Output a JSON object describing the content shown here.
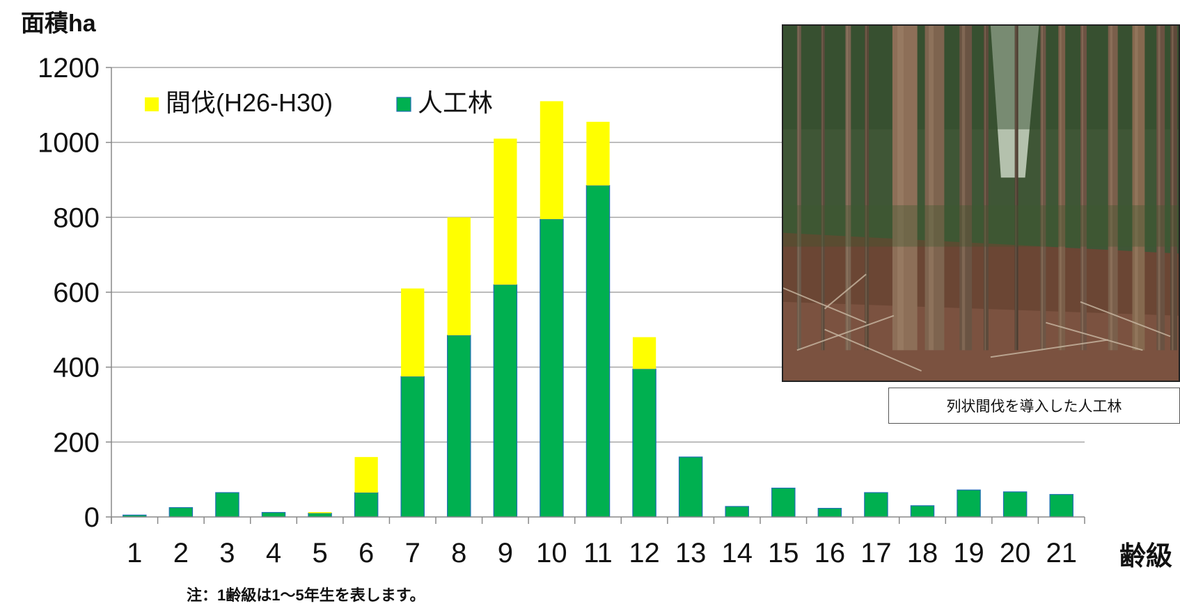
{
  "chart_data": {
    "type": "bar",
    "stacked": true,
    "ylabel": "面積ha",
    "xlabel": "齢級",
    "ylim": [
      0,
      1200
    ],
    "yticks": [
      0,
      200,
      400,
      600,
      800,
      1000,
      1200
    ],
    "grid": true,
    "legend_position": "top-left",
    "categories": [
      "1",
      "2",
      "3",
      "4",
      "5",
      "6",
      "7",
      "8",
      "9",
      "10",
      "11",
      "12",
      "13",
      "14",
      "15",
      "16",
      "17",
      "18",
      "19",
      "20",
      "21"
    ],
    "series": [
      {
        "name": "人工林",
        "color": "#00b050",
        "values": [
          5,
          25,
          65,
          12,
          10,
          65,
          375,
          485,
          620,
          795,
          885,
          395,
          160,
          28,
          77,
          23,
          65,
          30,
          72,
          67,
          60
        ]
      },
      {
        "name": "間伐(H26-H30)",
        "color": "#ffff00",
        "values": [
          0,
          0,
          0,
          0,
          3,
          95,
          235,
          315,
          390,
          315,
          170,
          85,
          0,
          0,
          0,
          0,
          0,
          0,
          0,
          0,
          0
        ]
      }
    ],
    "legend_order": [
      "間伐(H26-H30)",
      "人工林"
    ]
  },
  "photo": {
    "caption": "列状間伐を導入した人工林"
  },
  "note": "注：1齢級は1～5年生を表します。"
}
